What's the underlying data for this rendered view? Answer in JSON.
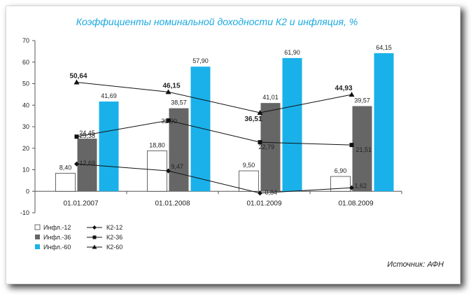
{
  "chart_data": {
    "type": "bar",
    "title": "Коэффициенты номинальной доходности К2 и инфляция, %",
    "categories": [
      "01.01.2007",
      "01.01.2008",
      "01.01.2009",
      "01.08.2009"
    ],
    "ylim": [
      -10,
      70
    ],
    "yticks": [
      -10,
      0,
      10,
      20,
      30,
      40,
      50,
      60,
      70
    ],
    "grid": false,
    "legend_position": "bottom-left",
    "bar_series": [
      {
        "name": "Инфл.-12",
        "values": [
          8.4,
          18.8,
          9.5,
          6.9
        ],
        "labels": [
          "8,40",
          "18,80",
          "9,50",
          "6,90"
        ],
        "color": "#ffffff"
      },
      {
        "name": "Инфл.-36",
        "values": [
          24.45,
          38.57,
          41.01,
          39.57
        ],
        "labels": [
          "24,45",
          "38,57",
          "41,01",
          "39,57"
        ],
        "color": "#666666"
      },
      {
        "name": "Инфл.-60",
        "values": [
          41.69,
          57.9,
          61.9,
          64.15
        ],
        "labels": [
          "41,69",
          "57,90",
          "61,90",
          "64,15"
        ],
        "color": "#1ab1ea"
      }
    ],
    "line_series": [
      {
        "name": "К2-12",
        "values": [
          12.69,
          9.47,
          -0.84,
          1.62
        ],
        "labels": [
          "12,69",
          "9,47",
          "-0,84",
          "1,62"
        ],
        "marker": "diamond"
      },
      {
        "name": "К2-36",
        "values": [
          25.38,
          32.9,
          22.79,
          21.51
        ],
        "labels": [
          "25,38",
          "32,90",
          "22,79",
          "21,51"
        ],
        "marker": "square"
      },
      {
        "name": "К2-60",
        "values": [
          50.64,
          46.15,
          36.51,
          44.93
        ],
        "labels": [
          "50,64",
          "46,15",
          "36,51",
          "44,93"
        ],
        "marker": "triangle"
      }
    ],
    "source": "Источник: АФН"
  }
}
